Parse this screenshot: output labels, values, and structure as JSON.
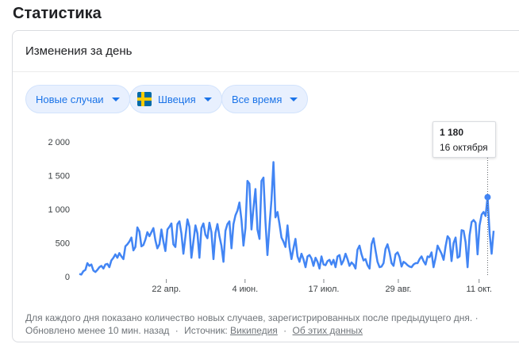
{
  "page": {
    "heading": "Статистика"
  },
  "card": {
    "title": "Изменения за день"
  },
  "filters": {
    "metric": "Новые случаи",
    "country": "Швеция",
    "period": "Все время"
  },
  "tooltip": {
    "value": "1 180",
    "date": "16 октября"
  },
  "footer": {
    "line1": "Для каждого дня показано количество новых случаев, зарегистрированных после предыдущего дня. ·",
    "updated": "Обновлено менее 10 мин. назад",
    "separator1": "·",
    "source_label": "Источник:",
    "source_link": "Википедия",
    "separator2": "·",
    "about_link": "Об этих данных"
  },
  "colors": {
    "line": "#4285f4",
    "accent": "#1a73e8"
  },
  "chart_data": {
    "type": "line",
    "title": "",
    "xlabel": "",
    "ylabel": "",
    "ylim": [
      0,
      2000
    ],
    "yticks": [
      0,
      500,
      1000,
      1500,
      2000
    ],
    "ytick_labels": [
      "0",
      "500",
      "1 000",
      "1 500",
      "2 000"
    ],
    "xtick_labels": [
      "22 апр.",
      "4 июн.",
      "17 июл.",
      "29 авг.",
      "11 окт."
    ],
    "grid": false,
    "series": [
      {
        "values": [
          40,
          30,
          80,
          100,
          200,
          160,
          180,
          90,
          70,
          100,
          140,
          160,
          120,
          180,
          190,
          140,
          240,
          280,
          330,
          280,
          350,
          300,
          260,
          450,
          480,
          520,
          580,
          390,
          440,
          730,
          670,
          450,
          470,
          550,
          660,
          600,
          660,
          720,
          540,
          420,
          480,
          700,
          520,
          380,
          700,
          740,
          790,
          480,
          440,
          780,
          820,
          640,
          340,
          600,
          850,
          740,
          280,
          520,
          760,
          640,
          280,
          720,
          790,
          620,
          570,
          800,
          660,
          260,
          650,
          780,
          600,
          460,
          220,
          680,
          780,
          820,
          420,
          780,
          910,
          980,
          1100,
          840,
          460,
          720,
          1420,
          1380,
          700,
          1020,
          1300,
          700,
          560,
          1420,
          1470,
          820,
          320,
          760,
          1140,
          1700,
          880,
          960,
          780,
          580,
          520,
          440,
          760,
          440,
          260,
          420,
          560,
          300,
          220,
          340,
          260,
          140,
          300,
          320,
          270,
          160,
          280,
          220,
          120,
          300,
          180,
          170,
          230,
          250,
          180,
          250,
          140,
          300,
          320,
          180,
          240,
          340,
          260,
          160,
          210,
          180,
          120,
          400,
          460,
          330,
          240,
          260,
          170,
          120,
          480,
          570,
          390,
          220,
          140,
          150,
          200,
          410,
          480,
          360,
          200,
          160,
          330,
          360,
          290,
          150,
          220,
          200,
          170,
          150,
          140,
          180,
          200,
          200,
          260,
          300,
          230,
          180,
          300,
          290,
          360,
          140,
          280,
          460,
          400,
          340,
          250,
          450,
          600,
          560,
          230,
          500,
          580,
          280,
          300,
          690,
          680,
          510,
          140,
          610,
          810,
          840,
          800,
          330,
          760,
          920,
          960,
          900,
          1180,
          640,
          340,
          680
        ]
      }
    ],
    "highlight": {
      "date": "16 октября",
      "value": 1180
    }
  }
}
